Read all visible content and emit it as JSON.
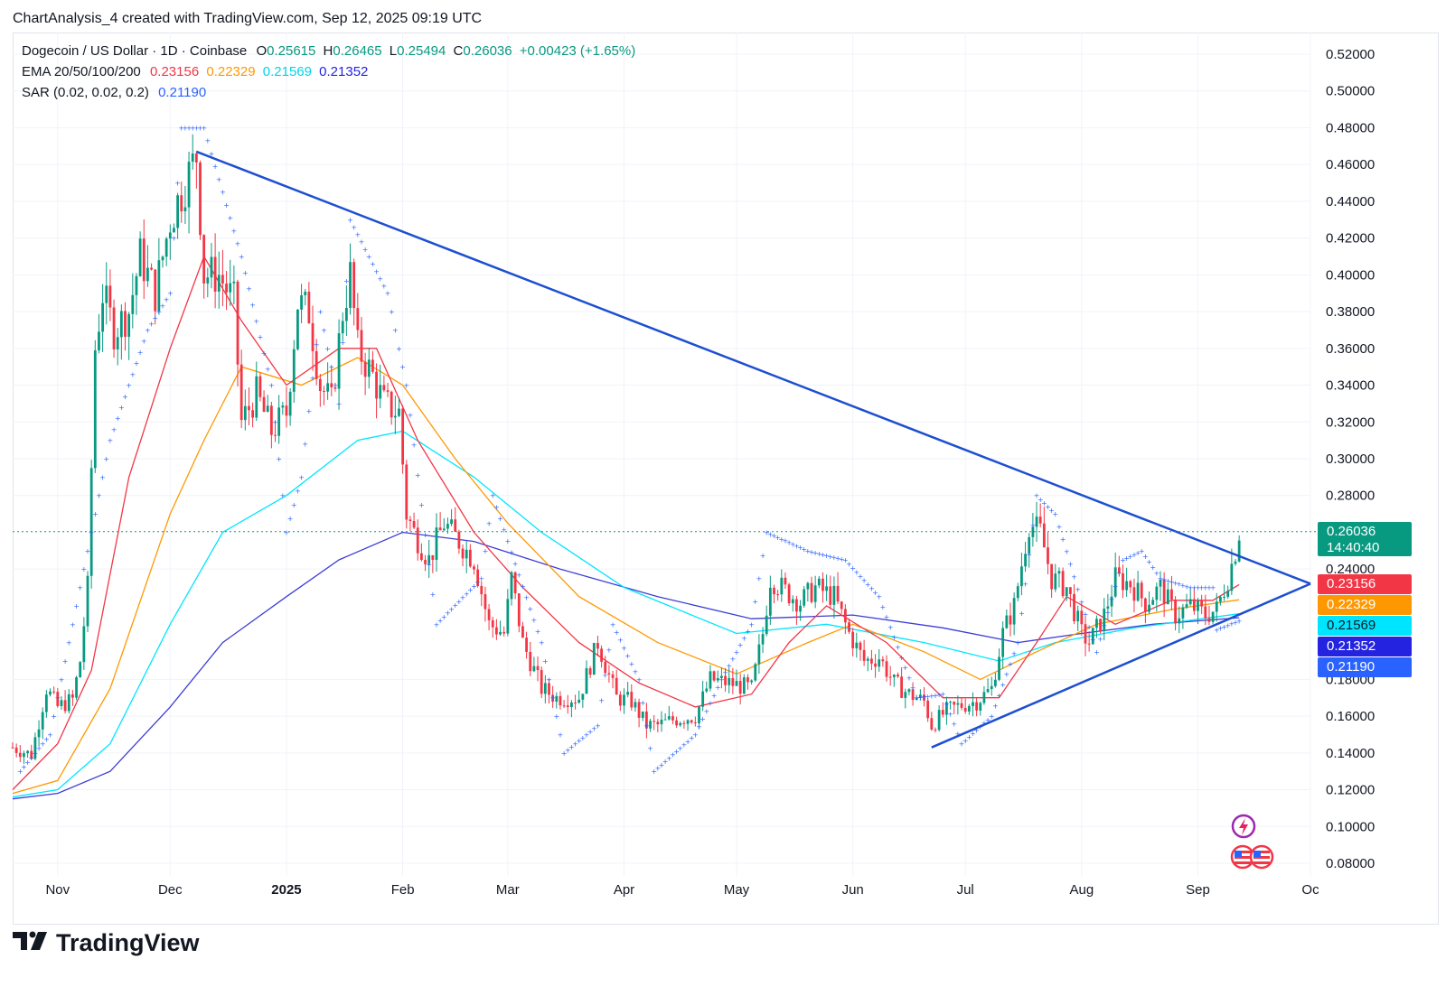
{
  "header": {
    "credit": "ChartAnalysis_4 created with TradingView.com, Sep 12, 2025 09:19 UTC"
  },
  "legend": {
    "symbol": "Dogecoin / US Dollar · 1D · Coinbase",
    "open_label": "O",
    "open": "0.25615",
    "high_label": "H",
    "high": "0.26465",
    "low_label": "L",
    "low": "0.25494",
    "close_label": "C",
    "close": "0.26036",
    "change": "+0.00423 (+1.65%)",
    "ema_label": "EMA 20/50/100/200",
    "ema20": "0.23156",
    "ema50": "0.22329",
    "ema100": "0.21569",
    "ema200": "0.21352",
    "sar_label": "SAR (0.02, 0.02, 0.2)",
    "sar": "0.21190"
  },
  "price_tags": [
    {
      "value": "0.26036",
      "sub": "14:40:40",
      "color": "#089981"
    },
    {
      "value": "0.23156",
      "color": "#f23645"
    },
    {
      "value": "0.22329",
      "color": "#ff9800"
    },
    {
      "value": "0.21569",
      "color": "#00e5ff",
      "text_color": "#131722"
    },
    {
      "value": "0.21352",
      "color": "#2424e0"
    },
    {
      "value": "0.21190",
      "color": "#2962ff"
    }
  ],
  "colors": {
    "up": "#089981",
    "down": "#f23645",
    "ema20": "#f23645",
    "ema50": "#ff9800",
    "ema100": "#00e5ff",
    "ema200": "#3d3dd6",
    "sar": "#2962ff",
    "trendline": "#1e4fd0",
    "grid": "#f0f3fa"
  },
  "logo": {
    "text": "TradingView"
  },
  "chart_data": {
    "type": "candlestick",
    "title": "Dogecoin / US Dollar · 1D · Coinbase",
    "ylim": [
      0.07,
      0.53
    ],
    "y_ticks": [
      "0.52000",
      "0.50000",
      "0.48000",
      "0.46000",
      "0.44000",
      "0.42000",
      "0.40000",
      "0.38000",
      "0.36000",
      "0.34000",
      "0.32000",
      "0.30000",
      "0.28000",
      "0.24000",
      "0.18000",
      "0.16000",
      "0.14000",
      "0.12000",
      "0.10000",
      "0.08000"
    ],
    "x_ticks": [
      {
        "label": "Nov",
        "date": "2024-11-01"
      },
      {
        "label": "Dec",
        "date": "2024-12-01"
      },
      {
        "label": "2025",
        "date": "2025-01-01",
        "bold": true
      },
      {
        "label": "Feb",
        "date": "2025-02-01"
      },
      {
        "label": "Mar",
        "date": "2025-03-01"
      },
      {
        "label": "Apr",
        "date": "2025-04-01"
      },
      {
        "label": "May",
        "date": "2025-05-01"
      },
      {
        "label": "Jun",
        "date": "2025-06-01"
      },
      {
        "label": "Jul",
        "date": "2025-07-01"
      },
      {
        "label": "Aug",
        "date": "2025-08-01"
      },
      {
        "label": "Sep",
        "date": "2025-09-01"
      },
      {
        "label": "Oc",
        "date": "2025-10-01"
      }
    ],
    "price_path": [
      [
        "2024-10-20",
        0.143
      ],
      [
        "2024-10-25",
        0.139
      ],
      [
        "2024-10-29",
        0.175
      ],
      [
        "2024-11-01",
        0.165
      ],
      [
        "2024-11-05",
        0.169
      ],
      [
        "2024-11-07",
        0.19
      ],
      [
        "2024-11-09",
        0.23
      ],
      [
        "2024-11-11",
        0.36
      ],
      [
        "2024-11-13",
        0.39
      ],
      [
        "2024-11-16",
        0.37
      ],
      [
        "2024-11-20",
        0.38
      ],
      [
        "2024-11-23",
        0.41
      ],
      [
        "2024-11-27",
        0.39
      ],
      [
        "2024-12-01",
        0.43
      ],
      [
        "2024-12-05",
        0.45
      ],
      [
        "2024-12-08",
        0.465
      ],
      [
        "2024-12-10",
        0.4
      ],
      [
        "2024-12-14",
        0.4
      ],
      [
        "2024-12-18",
        0.385
      ],
      [
        "2024-12-20",
        0.32
      ],
      [
        "2024-12-24",
        0.335
      ],
      [
        "2024-12-28",
        0.315
      ],
      [
        "2025-01-01",
        0.325
      ],
      [
        "2025-01-04",
        0.385
      ],
      [
        "2025-01-07",
        0.38
      ],
      [
        "2025-01-10",
        0.34
      ],
      [
        "2025-01-13",
        0.33
      ],
      [
        "2025-01-16",
        0.38
      ],
      [
        "2025-01-18",
        0.4
      ],
      [
        "2025-01-20",
        0.36
      ],
      [
        "2025-01-24",
        0.345
      ],
      [
        "2025-01-27",
        0.33
      ],
      [
        "2025-01-31",
        0.325
      ],
      [
        "2025-02-02",
        0.27
      ],
      [
        "2025-02-04",
        0.26
      ],
      [
        "2025-02-08",
        0.245
      ],
      [
        "2025-02-12",
        0.265
      ],
      [
        "2025-02-16",
        0.255
      ],
      [
        "2025-02-20",
        0.245
      ],
      [
        "2025-02-24",
        0.21
      ],
      [
        "2025-02-28",
        0.205
      ],
      [
        "2025-03-02",
        0.235
      ],
      [
        "2025-03-05",
        0.2
      ],
      [
        "2025-03-10",
        0.175
      ],
      [
        "2025-03-14",
        0.17
      ],
      [
        "2025-03-20",
        0.17
      ],
      [
        "2025-03-25",
        0.2
      ],
      [
        "2025-03-30",
        0.17
      ],
      [
        "2025-04-03",
        0.168
      ],
      [
        "2025-04-07",
        0.155
      ],
      [
        "2025-04-10",
        0.155
      ],
      [
        "2025-04-14",
        0.158
      ],
      [
        "2025-04-20",
        0.16
      ],
      [
        "2025-04-24",
        0.18
      ],
      [
        "2025-04-29",
        0.178
      ],
      [
        "2025-05-05",
        0.175
      ],
      [
        "2025-05-08",
        0.205
      ],
      [
        "2025-05-10",
        0.235
      ],
      [
        "2025-05-14",
        0.228
      ],
      [
        "2025-05-18",
        0.222
      ],
      [
        "2025-05-22",
        0.23
      ],
      [
        "2025-05-27",
        0.225
      ],
      [
        "2025-05-31",
        0.205
      ],
      [
        "2025-06-04",
        0.19
      ],
      [
        "2025-06-08",
        0.192
      ],
      [
        "2025-06-12",
        0.178
      ],
      [
        "2025-06-16",
        0.172
      ],
      [
        "2025-06-20",
        0.168
      ],
      [
        "2025-06-22",
        0.155
      ],
      [
        "2025-06-26",
        0.163
      ],
      [
        "2025-06-30",
        0.166
      ],
      [
        "2025-07-04",
        0.168
      ],
      [
        "2025-07-08",
        0.175
      ],
      [
        "2025-07-11",
        0.205
      ],
      [
        "2025-07-14",
        0.22
      ],
      [
        "2025-07-18",
        0.265
      ],
      [
        "2025-07-21",
        0.26
      ],
      [
        "2025-07-24",
        0.235
      ],
      [
        "2025-07-28",
        0.23
      ],
      [
        "2025-08-01",
        0.205
      ],
      [
        "2025-08-03",
        0.2
      ],
      [
        "2025-08-07",
        0.215
      ],
      [
        "2025-08-10",
        0.235
      ],
      [
        "2025-08-14",
        0.232
      ],
      [
        "2025-08-18",
        0.222
      ],
      [
        "2025-08-22",
        0.23
      ],
      [
        "2025-08-26",
        0.215
      ],
      [
        "2025-08-30",
        0.22
      ],
      [
        "2025-09-03",
        0.215
      ],
      [
        "2025-09-06",
        0.218
      ],
      [
        "2025-09-09",
        0.235
      ],
      [
        "2025-09-11",
        0.25
      ],
      [
        "2025-09-12",
        0.26036
      ]
    ],
    "ema_paths": {
      "ema20": [
        [
          "2024-10-20",
          0.12
        ],
        [
          "2024-11-01",
          0.145
        ],
        [
          "2024-11-10",
          0.185
        ],
        [
          "2024-11-20",
          0.29
        ],
        [
          "2024-12-01",
          0.36
        ],
        [
          "2024-12-10",
          0.41
        ],
        [
          "2024-12-20",
          0.375
        ],
        [
          "2025-01-01",
          0.34
        ],
        [
          "2025-01-15",
          0.36
        ],
        [
          "2025-01-25",
          0.36
        ],
        [
          "2025-02-05",
          0.31
        ],
        [
          "2025-02-20",
          0.26
        ],
        [
          "2025-03-05",
          0.23
        ],
        [
          "2025-03-20",
          0.2
        ],
        [
          "2025-04-05",
          0.178
        ],
        [
          "2025-04-20",
          0.165
        ],
        [
          "2025-05-05",
          0.172
        ],
        [
          "2025-05-15",
          0.2
        ],
        [
          "2025-05-25",
          0.22
        ],
        [
          "2025-06-10",
          0.2
        ],
        [
          "2025-06-25",
          0.17
        ],
        [
          "2025-07-10",
          0.17
        ],
        [
          "2025-07-20",
          0.2
        ],
        [
          "2025-07-28",
          0.225
        ],
        [
          "2025-08-10",
          0.21
        ],
        [
          "2025-08-25",
          0.223
        ],
        [
          "2025-09-05",
          0.223
        ],
        [
          "2025-09-12",
          0.23156
        ]
      ],
      "ema50": [
        [
          "2024-10-20",
          0.118
        ],
        [
          "2024-11-01",
          0.125
        ],
        [
          "2024-11-15",
          0.175
        ],
        [
          "2024-12-01",
          0.27
        ],
        [
          "2024-12-10",
          0.31
        ],
        [
          "2024-12-20",
          0.35
        ],
        [
          "2025-01-05",
          0.34
        ],
        [
          "2025-01-20",
          0.355
        ],
        [
          "2025-02-01",
          0.34
        ],
        [
          "2025-02-15",
          0.3
        ],
        [
          "2025-03-01",
          0.265
        ],
        [
          "2025-03-20",
          0.225
        ],
        [
          "2025-04-10",
          0.2
        ],
        [
          "2025-05-01",
          0.183
        ],
        [
          "2025-05-20",
          0.2
        ],
        [
          "2025-06-01",
          0.21
        ],
        [
          "2025-06-20",
          0.195
        ],
        [
          "2025-07-05",
          0.18
        ],
        [
          "2025-07-20",
          0.195
        ],
        [
          "2025-08-05",
          0.21
        ],
        [
          "2025-08-25",
          0.218
        ],
        [
          "2025-09-12",
          0.22329
        ]
      ],
      "ema100": [
        [
          "2024-10-20",
          0.116
        ],
        [
          "2024-11-01",
          0.12
        ],
        [
          "2024-11-15",
          0.145
        ],
        [
          "2024-12-01",
          0.21
        ],
        [
          "2024-12-15",
          0.26
        ],
        [
          "2025-01-01",
          0.28
        ],
        [
          "2025-01-20",
          0.31
        ],
        [
          "2025-02-01",
          0.315
        ],
        [
          "2025-02-20",
          0.29
        ],
        [
          "2025-03-10",
          0.26
        ],
        [
          "2025-04-01",
          0.23
        ],
        [
          "2025-05-01",
          0.205
        ],
        [
          "2025-05-25",
          0.21
        ],
        [
          "2025-06-20",
          0.2
        ],
        [
          "2025-07-10",
          0.19
        ],
        [
          "2025-07-25",
          0.2
        ],
        [
          "2025-08-15",
          0.208
        ],
        [
          "2025-09-12",
          0.21569
        ]
      ],
      "ema200": [
        [
          "2024-10-20",
          0.115
        ],
        [
          "2024-11-01",
          0.118
        ],
        [
          "2024-11-15",
          0.13
        ],
        [
          "2024-12-01",
          0.165
        ],
        [
          "2024-12-15",
          0.2
        ],
        [
          "2025-01-01",
          0.225
        ],
        [
          "2025-01-15",
          0.245
        ],
        [
          "2025-02-01",
          0.26
        ],
        [
          "2025-02-20",
          0.255
        ],
        [
          "2025-03-15",
          0.24
        ],
        [
          "2025-04-10",
          0.225
        ],
        [
          "2025-05-05",
          0.213
        ],
        [
          "2025-06-01",
          0.215
        ],
        [
          "2025-06-25",
          0.208
        ],
        [
          "2025-07-15",
          0.2
        ],
        [
          "2025-08-01",
          0.205
        ],
        [
          "2025-08-20",
          0.21
        ],
        [
          "2025-09-12",
          0.21352
        ]
      ]
    },
    "sar_path": [
      [
        "2024-10-22",
        0.13
      ],
      [
        "2024-10-30",
        0.15
      ],
      [
        "2024-11-15",
        0.31
      ],
      [
        "2024-11-25",
        0.37
      ],
      [
        "2024-12-01",
        0.39
      ],
      [
        "2024-12-04",
        0.48
      ],
      [
        "2024-12-10",
        0.48
      ],
      [
        "2024-12-20",
        0.41
      ],
      [
        "2024-12-28",
        0.34
      ],
      [
        "2025-01-01",
        0.26
      ],
      [
        "2025-01-05",
        0.29
      ],
      [
        "2025-01-10",
        0.38
      ],
      [
        "2025-01-15",
        0.33
      ],
      [
        "2025-01-18",
        0.43
      ],
      [
        "2025-01-28",
        0.39
      ],
      [
        "2025-02-02",
        0.34
      ],
      [
        "2025-02-10",
        0.21
      ],
      [
        "2025-02-22",
        0.235
      ],
      [
        "2025-02-25",
        0.28
      ],
      [
        "2025-03-10",
        0.2
      ],
      [
        "2025-03-16",
        0.14
      ],
      [
        "2025-03-25",
        0.155
      ],
      [
        "2025-03-29",
        0.21
      ],
      [
        "2025-04-05",
        0.18
      ],
      [
        "2025-04-09",
        0.13
      ],
      [
        "2025-04-20",
        0.15
      ],
      [
        "2025-04-27",
        0.18
      ],
      [
        "2025-05-05",
        0.21
      ],
      [
        "2025-05-09",
        0.26
      ],
      [
        "2025-05-20",
        0.25
      ],
      [
        "2025-05-30",
        0.245
      ],
      [
        "2025-06-08",
        0.225
      ],
      [
        "2025-06-18",
        0.17
      ],
      [
        "2025-06-25",
        0.172
      ],
      [
        "2025-06-30",
        0.145
      ],
      [
        "2025-07-08",
        0.16
      ],
      [
        "2025-07-15",
        0.2
      ],
      [
        "2025-07-20",
        0.28
      ],
      [
        "2025-07-25",
        0.27
      ],
      [
        "2025-08-05",
        0.195
      ],
      [
        "2025-08-12",
        0.245
      ],
      [
        "2025-08-17",
        0.25
      ],
      [
        "2025-08-22",
        0.235
      ],
      [
        "2025-08-30",
        0.23
      ],
      [
        "2025-09-05",
        0.23
      ],
      [
        "2025-09-06",
        0.207
      ],
      [
        "2025-09-12",
        0.2119
      ]
    ],
    "trendlines": [
      {
        "from": [
          "2024-12-08",
          0.467
        ],
        "to": [
          "2025-10-01",
          0.232
        ]
      },
      {
        "from": [
          "2025-06-22",
          0.143
        ],
        "to": [
          "2025-10-01",
          0.232
        ]
      }
    ]
  }
}
